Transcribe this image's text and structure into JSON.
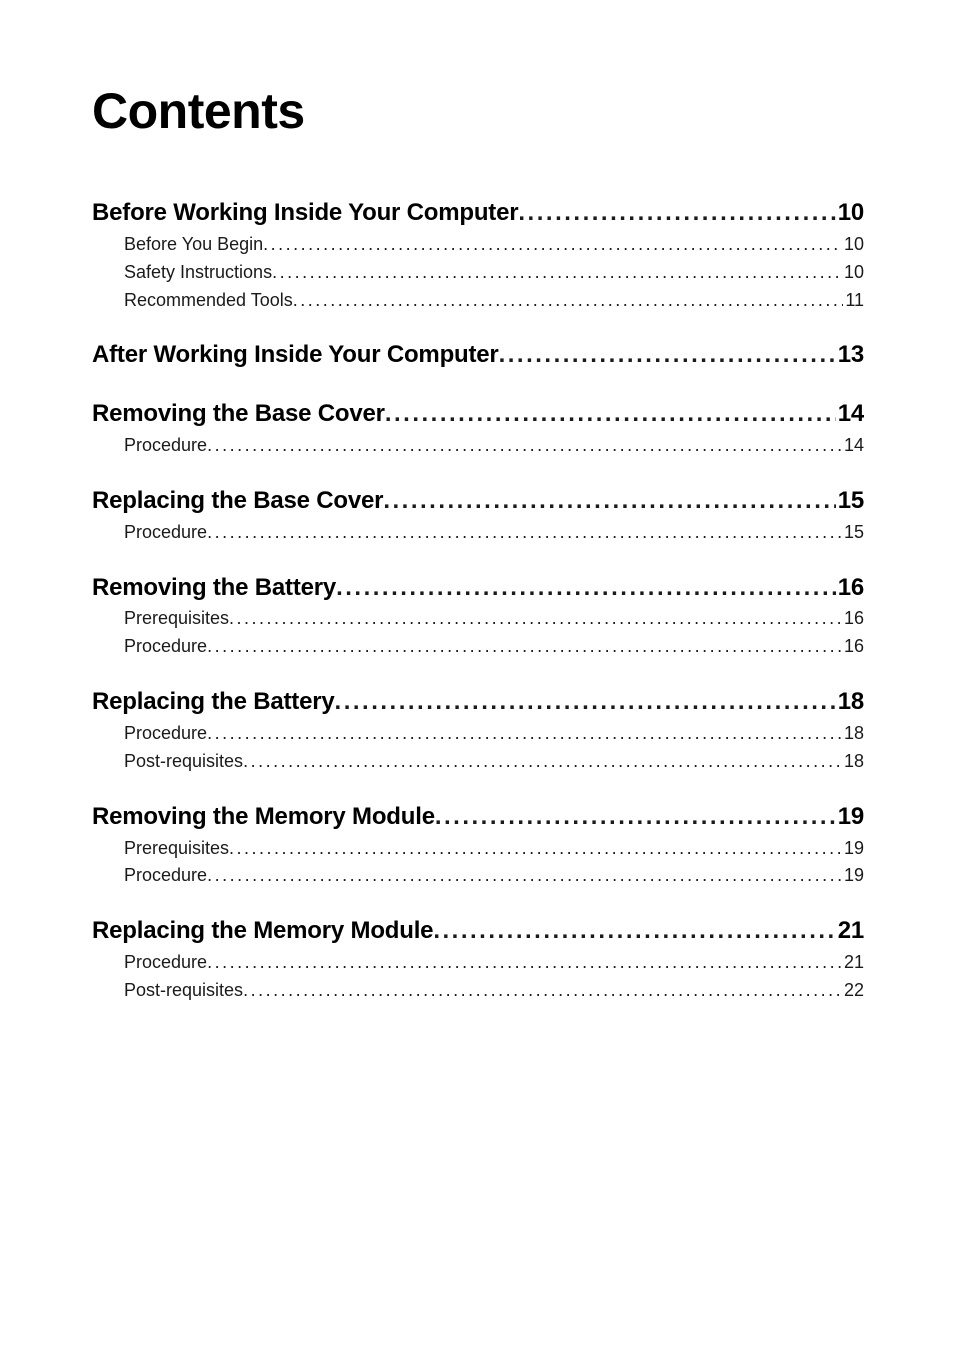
{
  "title": "Contents",
  "filler": "......................................................................................................................................................................................................",
  "sections": [
    {
      "heading": {
        "label": "Before Working Inside Your Computer",
        "page": "10"
      },
      "items": [
        {
          "label": "Before You Begin ",
          "page": "10"
        },
        {
          "label": "Safety Instructions",
          "page": " 10"
        },
        {
          "label": "Recommended Tools",
          "page": "11"
        }
      ]
    },
    {
      "heading": {
        "label": "After Working Inside Your Computer",
        "page": " 13"
      },
      "items": []
    },
    {
      "heading": {
        "label": "Removing the Base Cover",
        "page": "14"
      },
      "items": [
        {
          "label": "Procedure",
          "page": "14"
        }
      ]
    },
    {
      "heading": {
        "label": "Replacing the Base Cover",
        "page": " 15"
      },
      "items": [
        {
          "label": "Procedure",
          "page": "15"
        }
      ]
    },
    {
      "heading": {
        "label": "Removing the Battery",
        "page": " 16"
      },
      "items": [
        {
          "label": "Prerequisites",
          "page": "16"
        },
        {
          "label": "Procedure",
          "page": "16"
        }
      ]
    },
    {
      "heading": {
        "label": "Replacing the Battery",
        "page": " 18"
      },
      "items": [
        {
          "label": "Procedure",
          "page": "18"
        },
        {
          "label": "Post-requisites",
          "page": " 18"
        }
      ]
    },
    {
      "heading": {
        "label": "Removing the Memory Module",
        "page": " 19"
      },
      "items": [
        {
          "label": "Prerequisites",
          "page": "19"
        },
        {
          "label": "Procedure",
          "page": "19"
        }
      ]
    },
    {
      "heading": {
        "label": "Replacing the Memory Module",
        "page": "21"
      },
      "items": [
        {
          "label": "Procedure",
          "page": "21"
        },
        {
          "label": "Post-requisites",
          "page": " 22"
        }
      ]
    }
  ]
}
